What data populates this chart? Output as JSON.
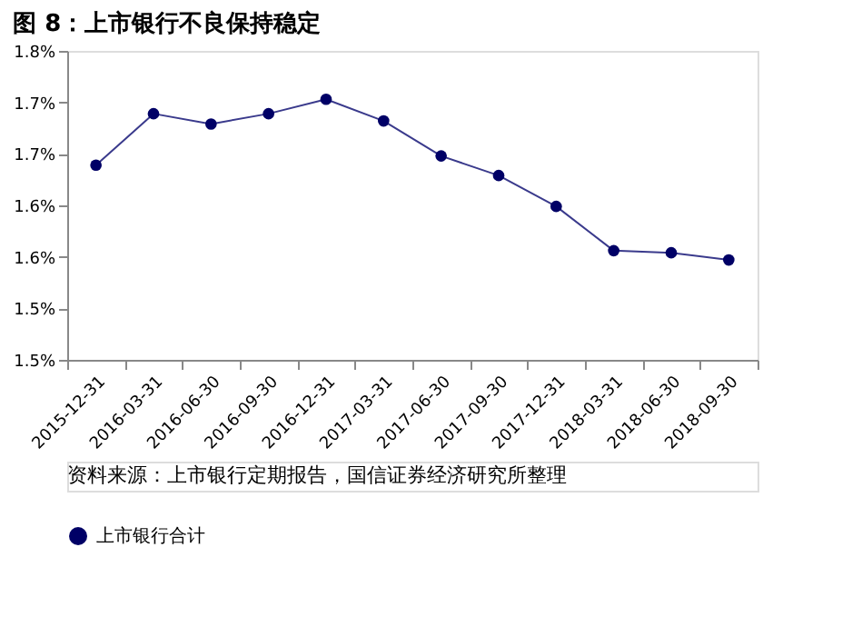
{
  "chart_data": {
    "type": "line",
    "title": "图 8：上市银行不良保持稳定",
    "categories": [
      "2015-12-31",
      "2016-03-31",
      "2016-06-30",
      "2016-09-30",
      "2016-12-31",
      "2017-03-31",
      "2017-06-30",
      "2017-09-30",
      "2017-12-31",
      "2018-03-31",
      "2018-06-30",
      "2018-09-30"
    ],
    "series": [
      {
        "name": "上市银行合计",
        "color": "#000066",
        "values": [
          1.689,
          1.739,
          1.729,
          1.739,
          1.753,
          1.732,
          1.698,
          1.679,
          1.649,
          1.606,
          1.604,
          1.597
        ]
      }
    ],
    "ylim": [
      1.5,
      1.8
    ],
    "yticks": [
      {
        "value": 1.5,
        "label": "1.5%"
      },
      {
        "value": 1.55,
        "label": "1.5%"
      },
      {
        "value": 1.6,
        "label": "1.6%"
      },
      {
        "value": 1.65,
        "label": "1.6%"
      },
      {
        "value": 1.7,
        "label": "1.7%"
      },
      {
        "value": 1.75,
        "label": "1.7%"
      },
      {
        "value": 1.8,
        "label": "1.8%"
      }
    ],
    "marker": "circle",
    "line_style": "solid",
    "grid": false,
    "legend": "bottom",
    "annotations": [
      "资料来源：上市银行定期报告，国信证券经济研究所整理"
    ]
  }
}
